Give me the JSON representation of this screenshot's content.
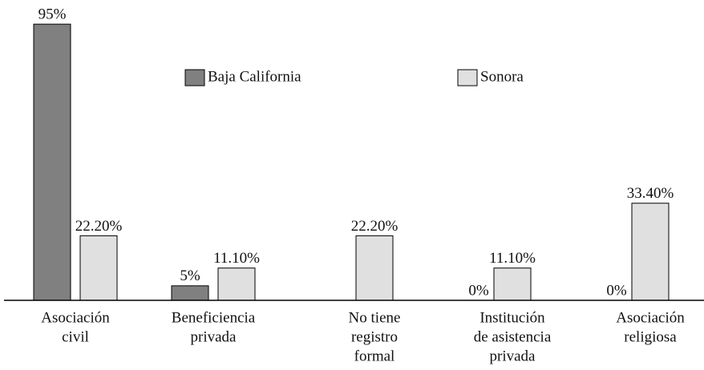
{
  "chart_data": {
    "type": "bar",
    "categories": [
      [
        "Asociación",
        "civil"
      ],
      [
        "Beneficiencia",
        "privada"
      ],
      [
        "No tiene",
        "registro",
        "formal"
      ],
      [
        "Institución",
        "de asistencia",
        "privada"
      ],
      [
        "Asociación",
        "religiosa"
      ]
    ],
    "series": [
      {
        "name": "Baja California",
        "color": "#808080",
        "values": [
          95,
          5,
          null,
          0,
          0
        ],
        "value_labels": [
          "95%",
          "5%",
          null,
          "0%",
          "0%"
        ]
      },
      {
        "name": "Sonora",
        "color": "#e0e0e0",
        "values": [
          22.2,
          11.1,
          22.2,
          11.1,
          33.4
        ],
        "value_labels": [
          "22.20%",
          "11.10%",
          "22.20%",
          "11.10%",
          "33.40%"
        ]
      }
    ],
    "ylim": [
      0,
      100
    ]
  }
}
